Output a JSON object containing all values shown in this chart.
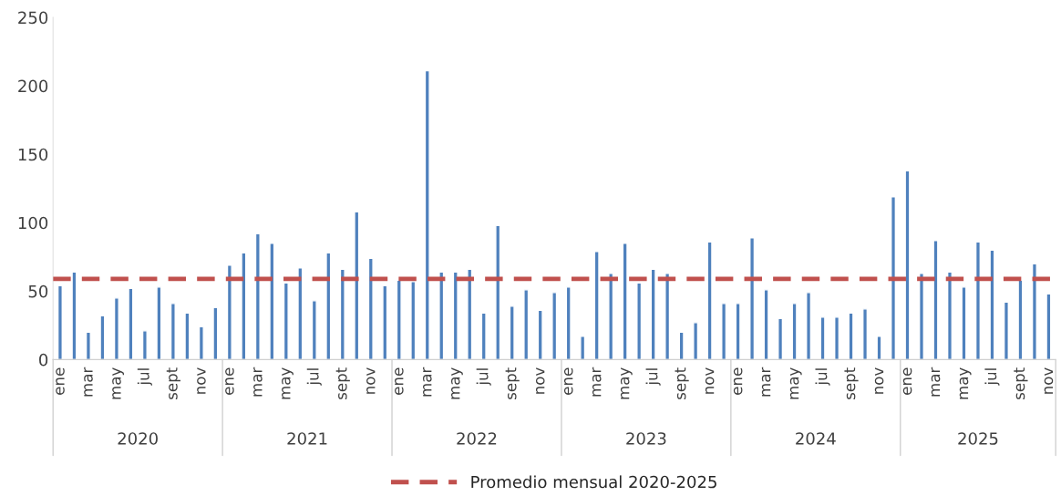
{
  "chart_data": {
    "type": "bar",
    "categories": [
      "ene",
      null,
      "mar",
      null,
      "may",
      null,
      "jul",
      null,
      "sept",
      null,
      "nov",
      null,
      "ene",
      null,
      "mar",
      null,
      "may",
      null,
      "jul",
      null,
      "sept",
      null,
      "nov",
      null,
      "ene",
      null,
      "mar",
      null,
      "may",
      null,
      "jul",
      null,
      "sept",
      null,
      "nov",
      null,
      "ene",
      null,
      "mar",
      null,
      "may",
      null,
      "jul",
      null,
      "sept",
      null,
      "nov",
      null,
      "ene",
      null,
      "mar",
      null,
      "may",
      null,
      "jul",
      null,
      "sept",
      null,
      "nov",
      null,
      "ene",
      null,
      "mar",
      null,
      "may",
      null,
      "jul",
      null,
      "sept",
      null,
      "nov"
    ],
    "values": [
      54,
      64,
      20,
      32,
      45,
      52,
      21,
      53,
      41,
      34,
      24,
      38,
      69,
      78,
      92,
      85,
      56,
      67,
      43,
      78,
      66,
      108,
      74,
      54,
      58,
      57,
      211,
      64,
      64,
      66,
      34,
      98,
      39,
      51,
      36,
      49,
      53,
      17,
      79,
      63,
      85,
      56,
      66,
      63,
      20,
      27,
      86,
      41,
      41,
      89,
      51,
      30,
      41,
      49,
      31,
      31,
      34,
      37,
      17,
      119,
      138,
      63,
      87,
      64,
      53,
      86,
      80,
      42,
      58,
      70,
      48
    ],
    "color": "#4f81bd",
    "ylim": [
      0,
      250
    ],
    "yticks": [
      0,
      50,
      100,
      150,
      200,
      250
    ],
    "ref_lines": [
      {
        "axis": "y",
        "value": 59,
        "label": "Promedio mensual 2020-2025",
        "color": "#c0504d",
        "line_style": "dashed"
      }
    ],
    "annotations": [
      "2020",
      "2021",
      "2022",
      "2023",
      "2024",
      "2025"
    ],
    "legend": "bottom",
    "grid": false
  }
}
